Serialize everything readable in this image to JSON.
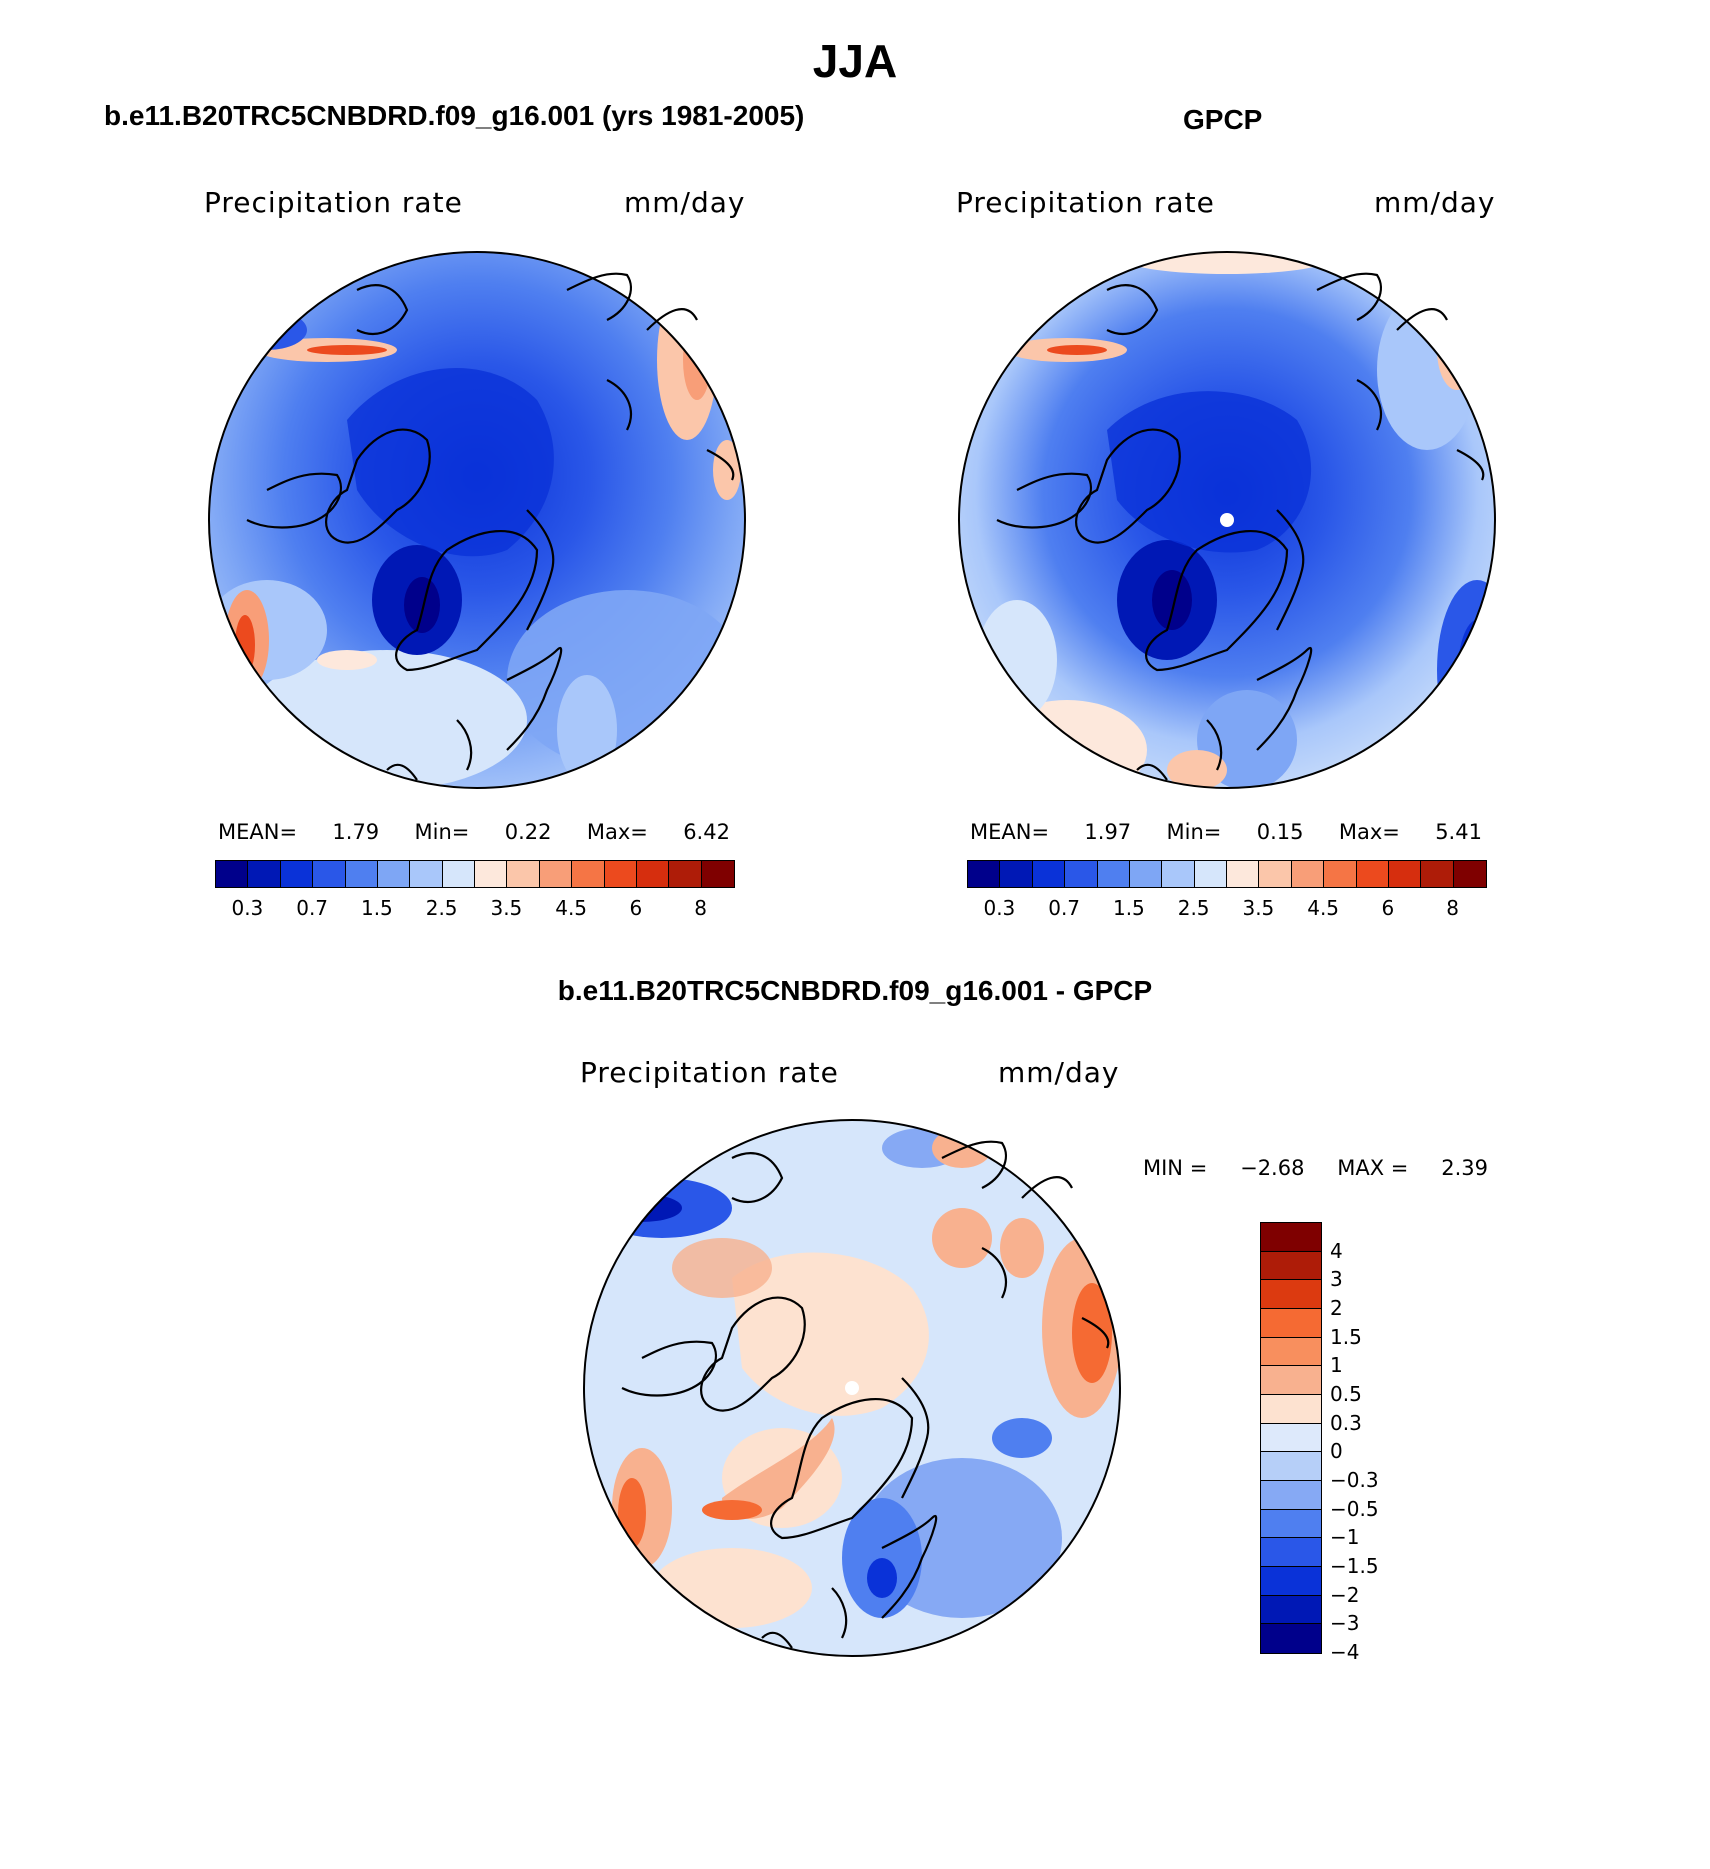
{
  "page": {
    "title": "JJA"
  },
  "panels": [
    {
      "id": "model",
      "header": "b.e11.B20TRC5CNBDRD.f09_g16.001 (yrs 1981-2005)",
      "variable": "Precipitation rate",
      "units": "mm/day",
      "stats_line": [
        "MEAN=",
        "1.79",
        "Min=",
        "0.22",
        "Max=",
        "6.42"
      ],
      "mean": 1.79,
      "min": 0.22,
      "max": 6.42
    },
    {
      "id": "obs",
      "header": "GPCP",
      "variable": "Precipitation rate",
      "units": "mm/day",
      "stats_line": [
        "MEAN=",
        "1.97",
        "Min=",
        "0.15",
        "Max=",
        "5.41"
      ],
      "mean": 1.97,
      "min": 0.15,
      "max": 5.41
    },
    {
      "id": "diff",
      "header": "b.e11.B20TRC5CNBDRD.f09_g16.001 - GPCP",
      "variable": "Precipitation rate",
      "units": "mm/day",
      "stats_line": [
        "MIN =",
        "−2.68",
        "MAX =",
        "2.39"
      ],
      "min": -2.68,
      "max": 2.39
    }
  ],
  "colorbar_precip": {
    "colors": [
      "#00008b",
      "#0018b5",
      "#0a32d8",
      "#2a57e8",
      "#4f7ff0",
      "#7ea6f5",
      "#a9c7fa",
      "#d6e6fb",
      "#fde8dc",
      "#fbc6aa",
      "#f89e78",
      "#f57545",
      "#ec4a1e",
      "#d62e0e",
      "#ae1c08",
      "#7f0000"
    ],
    "tick_labels": [
      "0.3",
      "0.7",
      "1.5",
      "2.5",
      "3.5",
      "4.5",
      "6",
      "8"
    ]
  },
  "colorbar_diff": {
    "colors": [
      "#7f0000",
      "#ae1c08",
      "#dc3a10",
      "#f56a33",
      "#f88f5e",
      "#f8b18f",
      "#fde2d0",
      "#dde9fb",
      "#b6cff8",
      "#86a9f4",
      "#4f7ff0",
      "#2a57e8",
      "#0a32d8",
      "#0018b5",
      "#00008b"
    ],
    "tick_labels": [
      "4",
      "3",
      "2",
      "1.5",
      "1",
      "0.5",
      "0.3",
      "0",
      "−0.3",
      "−0.5",
      "−1",
      "−1.5",
      "−2",
      "−3",
      "−4"
    ]
  }
}
